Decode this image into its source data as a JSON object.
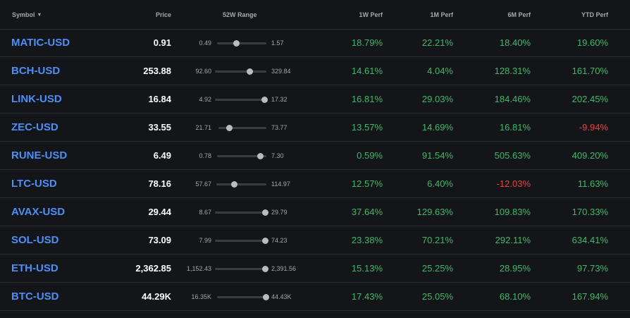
{
  "colors": {
    "background": "#131519",
    "symbol": "#4d8ff7",
    "positive": "#3fb969",
    "negative": "#f0413a",
    "header_text": "#a4a7ad"
  },
  "header": {
    "symbol": "Symbol",
    "sort_icon": "caret-down-icon",
    "price": "Price",
    "range": "52W Range",
    "perf_1w": "1W Perf",
    "perf_1m": "1M Perf",
    "perf_6m": "6M Perf",
    "perf_ytd": "YTD Perf"
  },
  "rows": [
    {
      "symbol": "MATIC-USD",
      "price": "0.91",
      "low": "0.49",
      "high": "1.57",
      "range_pos": 0.39,
      "p1w": "18.79%",
      "p1m": "22.21%",
      "p6m": "18.40%",
      "pytd": "19.60%"
    },
    {
      "symbol": "BCH-USD",
      "price": "253.88",
      "low": "92.60",
      "high": "329.84",
      "range_pos": 0.68,
      "p1w": "14.61%",
      "p1m": "4.04%",
      "p6m": "128.31%",
      "pytd": "161.70%"
    },
    {
      "symbol": "LINK-USD",
      "price": "16.84",
      "low": "4.92",
      "high": "17.32",
      "range_pos": 0.96,
      "p1w": "16.81%",
      "p1m": "29.03%",
      "p6m": "184.46%",
      "pytd": "202.45%"
    },
    {
      "symbol": "ZEC-USD",
      "price": "33.55",
      "low": "21.71",
      "high": "73.77",
      "range_pos": 0.23,
      "p1w": "13.57%",
      "p1m": "14.69%",
      "p6m": "16.81%",
      "pytd": "-9.94%"
    },
    {
      "symbol": "RUNE-USD",
      "price": "6.49",
      "low": "0.78",
      "high": "7.30",
      "range_pos": 0.88,
      "p1w": "0.59%",
      "p1m": "91.54%",
      "p6m": "505.63%",
      "pytd": "409.20%"
    },
    {
      "symbol": "LTC-USD",
      "price": "78.16",
      "low": "57.67",
      "high": "114.97",
      "range_pos": 0.36,
      "p1w": "12.57%",
      "p1m": "6.40%",
      "p6m": "-12.03%",
      "pytd": "11.63%"
    },
    {
      "symbol": "AVAX-USD",
      "price": "29.44",
      "low": "8.67",
      "high": "29.79",
      "range_pos": 0.98,
      "p1w": "37.64%",
      "p1m": "129.63%",
      "p6m": "109.83%",
      "pytd": "170.33%"
    },
    {
      "symbol": "SOL-USD",
      "price": "73.09",
      "low": "7.99",
      "high": "74.23",
      "range_pos": 0.98,
      "p1w": "23.38%",
      "p1m": "70.21%",
      "p6m": "292.11%",
      "pytd": "634.41%"
    },
    {
      "symbol": "ETH-USD",
      "price": "2,362.85",
      "low": "1,152.43",
      "high": "2,391.56",
      "range_pos": 0.98,
      "p1w": "15.13%",
      "p1m": "25.25%",
      "p6m": "28.95%",
      "pytd": "97.73%"
    },
    {
      "symbol": "BTC-USD",
      "price": "44.29K",
      "low": "16.35K",
      "high": "44.43K",
      "range_pos": 0.99,
      "p1w": "17.43%",
      "p1m": "25.05%",
      "p6m": "68.10%",
      "pytd": "167.94%"
    }
  ]
}
